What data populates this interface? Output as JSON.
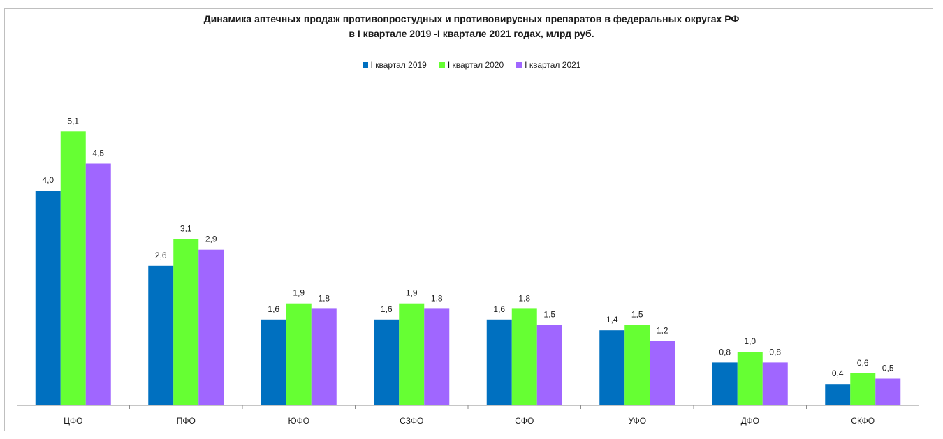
{
  "chart_data": {
    "type": "bar",
    "title_line1": "Динамика аптечных продаж противопростудных и противовирусных препаратов в федеральных округах РФ",
    "title_line2": "в I квартале 2019 -I квартале  2021 годах, млрд руб.",
    "categories": [
      "ЦФО",
      "ПФО",
      "ЮФО",
      "СЗФО",
      "СФО",
      "УФО",
      "ДФО",
      "СКФО"
    ],
    "series": [
      {
        "name": "I квартал 2019",
        "color": "#0070c0",
        "values": [
          4.0,
          2.6,
          1.6,
          1.6,
          1.6,
          1.4,
          0.8,
          0.4
        ],
        "labels": [
          "4,0",
          "2,6",
          "1,6",
          "1,6",
          "1,6",
          "1,4",
          "0,8",
          "0,4"
        ]
      },
      {
        "name": "I квартал 2020",
        "color": "#66ff33",
        "values": [
          5.1,
          3.1,
          1.9,
          1.9,
          1.8,
          1.5,
          1.0,
          0.6
        ],
        "labels": [
          "5,1",
          "3,1",
          "1,9",
          "1,9",
          "1,8",
          "1,5",
          "1,0",
          "0,6"
        ]
      },
      {
        "name": "I квартал 2021",
        "color": "#a066ff",
        "values": [
          4.5,
          2.9,
          1.8,
          1.8,
          1.5,
          1.2,
          0.8,
          0.5
        ],
        "labels": [
          "4,5",
          "2,9",
          "1,8",
          "1,8",
          "1,5",
          "1,2",
          "0,8",
          "0,5"
        ]
      }
    ],
    "ylim": [
      0,
      5.2
    ],
    "grid": false,
    "legend_position": "top"
  }
}
